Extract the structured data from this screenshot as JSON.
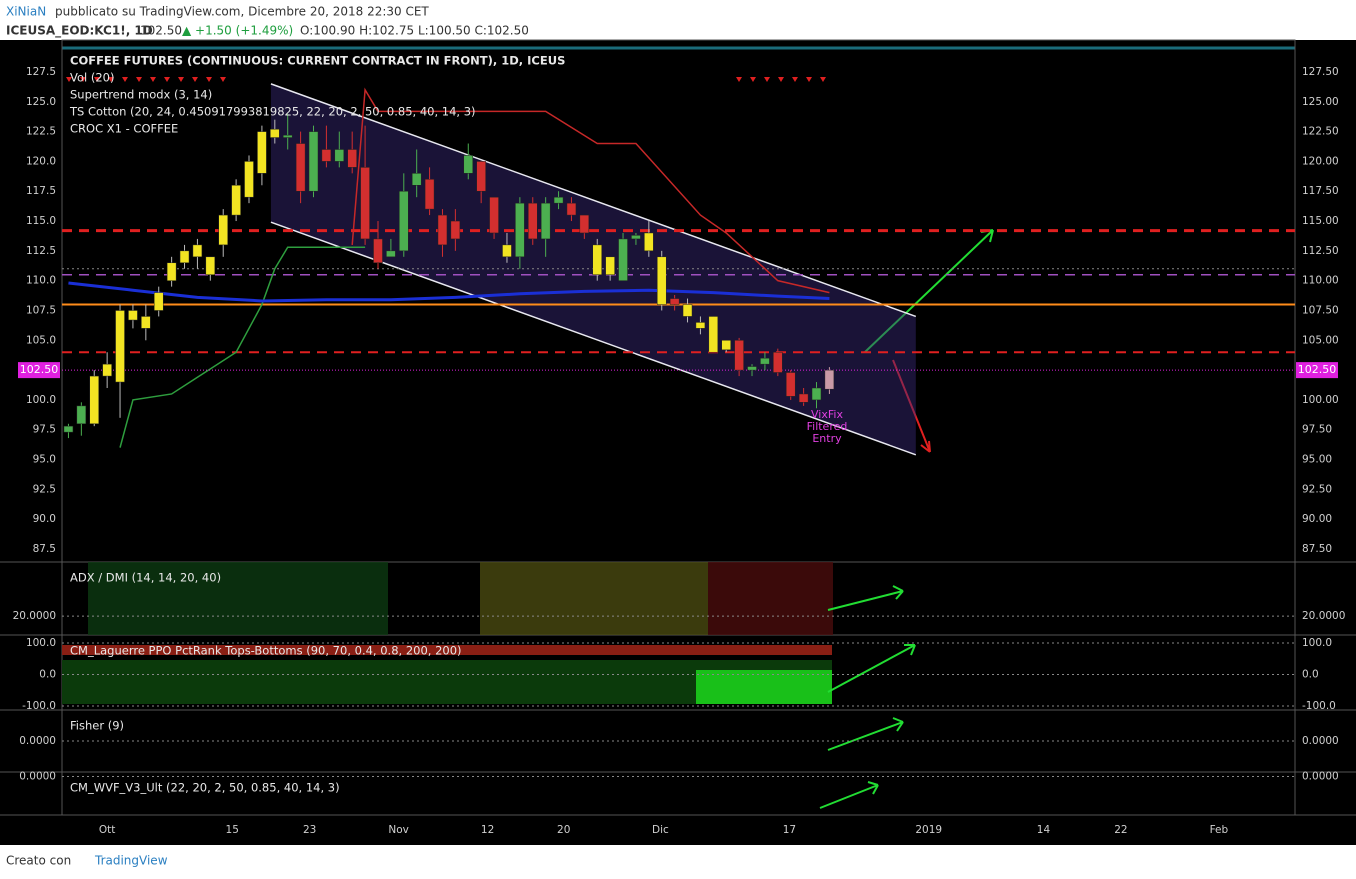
{
  "header": {
    "author": "XiNiaN",
    "published": "pubblicato su TradingView.com, Dicembre 20, 2018 22:30 CET",
    "symbol": "ICEUSA_EOD:KC1!, 1D",
    "price": "102.50",
    "change": "▲ +1.50 (+1.49%)",
    "ohlc": "O:100.90 H:102.75 L:100.50 C:102.50"
  },
  "footer": {
    "created": "Creato con",
    "brand": "TradingView"
  },
  "chart_data": {
    "type": "candlestick",
    "title": "COFFEE FUTURES (CONTINUOUS: CURRENT CONTRACT IN FRONT), 1D, ICEUS",
    "indicators": [
      "Vol (20)",
      "Supertrend modx (3, 14)",
      "TS Cotton (20, 24, 0.450917993819825, 22, 20, 2, 50, 0.85, 40, 14, 3)",
      "CROC X1 - COFFEE"
    ],
    "palette": {
      "Y": "#f2e422",
      "G": "#4caf50",
      "R": "#d32f2f",
      "P": "#c99aa6"
    },
    "candles": [
      [
        97.3,
        98,
        96.8,
        97.8,
        "G"
      ],
      [
        98,
        99.8,
        97,
        99.5,
        "G"
      ],
      [
        98,
        102.5,
        97.8,
        102,
        "Y"
      ],
      [
        102,
        104,
        101,
        103,
        "Y"
      ],
      [
        101.5,
        108,
        98.5,
        107.5,
        "Y"
      ],
      [
        106.7,
        108,
        106,
        107.5,
        "Y"
      ],
      [
        106,
        108,
        105,
        107,
        "Y"
      ],
      [
        107.5,
        109.5,
        107,
        109,
        "Y"
      ],
      [
        110,
        112,
        109.5,
        111.5,
        "Y"
      ],
      [
        111.5,
        113,
        111,
        112.5,
        "Y"
      ],
      [
        112,
        113.5,
        111,
        113,
        "Y"
      ],
      [
        110.5,
        112,
        110,
        112,
        "Y"
      ],
      [
        113,
        116,
        112,
        115.5,
        "Y"
      ],
      [
        115.5,
        118.5,
        115,
        118,
        "Y"
      ],
      [
        117,
        120.5,
        116.5,
        120,
        "Y"
      ],
      [
        119,
        123,
        118,
        122.5,
        "Y"
      ],
      [
        122,
        123.5,
        121.5,
        122.7,
        "Y"
      ],
      [
        122,
        124,
        121,
        122.2,
        "G"
      ],
      [
        121.5,
        122.5,
        116.5,
        117.5,
        "R"
      ],
      [
        117.5,
        123,
        117,
        122.5,
        "G"
      ],
      [
        121,
        123,
        119.5,
        120,
        "R"
      ],
      [
        120,
        122.5,
        119.5,
        121,
        "G"
      ],
      [
        121,
        122.5,
        119,
        119.5,
        "R"
      ],
      [
        119.5,
        123,
        113,
        113.5,
        "R"
      ],
      [
        113.5,
        115,
        111,
        111.5,
        "R"
      ],
      [
        112,
        113.5,
        112,
        112.5,
        "G"
      ],
      [
        112.5,
        119,
        112,
        117.5,
        "G"
      ],
      [
        118,
        121,
        117,
        119,
        "G"
      ],
      [
        118.5,
        119.5,
        115.5,
        116,
        "R"
      ],
      [
        115.5,
        116,
        112,
        113,
        "R"
      ],
      [
        115,
        116,
        112.5,
        113.5,
        "R"
      ],
      [
        119,
        121.5,
        118.5,
        120.5,
        "G"
      ],
      [
        120,
        120,
        116.5,
        117.5,
        "R"
      ],
      [
        117,
        117,
        113.5,
        114,
        "R"
      ],
      [
        113,
        114,
        111.5,
        112,
        "Y"
      ],
      [
        112,
        117,
        111,
        116.5,
        "G"
      ],
      [
        116.5,
        117,
        113,
        113.5,
        "R"
      ],
      [
        113.5,
        117,
        112,
        116.5,
        "G"
      ],
      [
        116.5,
        117.5,
        116,
        117,
        "G"
      ],
      [
        116.5,
        117,
        115,
        115.5,
        "R"
      ],
      [
        115.5,
        115.5,
        113.5,
        114,
        "R"
      ],
      [
        113,
        113.5,
        110,
        110.5,
        "Y"
      ],
      [
        110.5,
        112,
        110,
        112,
        "Y"
      ],
      [
        110,
        114,
        110,
        113.5,
        "G"
      ],
      [
        113.5,
        114,
        113,
        113.8,
        "G"
      ],
      [
        114,
        115,
        112,
        112.5,
        "Y"
      ],
      [
        112,
        112.5,
        107.5,
        108,
        "Y"
      ],
      [
        108.5,
        108.8,
        107.5,
        108,
        "R"
      ],
      [
        108,
        108.5,
        106.5,
        107,
        "Y"
      ],
      [
        106.5,
        107,
        105.5,
        106,
        "Y"
      ],
      [
        107,
        107,
        104,
        104,
        "Y"
      ],
      [
        105,
        105,
        104,
        104.2,
        "Y"
      ],
      [
        105,
        105.2,
        102,
        102.5,
        "R"
      ],
      [
        102.5,
        103,
        102,
        102.8,
        "G"
      ],
      [
        103,
        104,
        102.5,
        103.5,
        "G"
      ],
      [
        104,
        104.3,
        102,
        102.3,
        "R"
      ],
      [
        102.3,
        102.5,
        100,
        100.3,
        "R"
      ],
      [
        100.5,
        101,
        99.5,
        99.8,
        "R"
      ],
      [
        100,
        101.5,
        99.3,
        101,
        "G"
      ],
      [
        100.9,
        102.75,
        100.5,
        102.5,
        "P"
      ]
    ],
    "lines": [
      {
        "name": "Supertrend",
        "color": "#c62828",
        "x": [
          22,
          23,
          24,
          37,
          41,
          44,
          49,
          51,
          55,
          59
        ],
        "values": [
          113,
          126,
          124.2,
          124.2,
          121.5,
          121.5,
          115.5,
          114,
          110,
          109
        ]
      },
      {
        "name": "Supertrend",
        "color": "#2e9e3e",
        "x": [
          4,
          5,
          8,
          13,
          15,
          16,
          17,
          23
        ],
        "values": [
          96,
          100,
          100.5,
          104,
          108,
          111,
          112.8,
          112.8
        ]
      },
      {
        "name": "MA",
        "color": "#1a2fd6",
        "x": [
          0,
          5,
          10,
          15,
          20,
          25,
          30,
          35,
          40,
          45,
          50,
          55,
          59
        ],
        "values": [
          109.8,
          109.2,
          108.6,
          108.3,
          108.4,
          108.4,
          108.6,
          108.9,
          109.1,
          109.2,
          109,
          108.7,
          108.5
        ]
      }
    ],
    "levels": [
      {
        "value": 114.2,
        "color": "#e02020",
        "style": "dash",
        "width": 3
      },
      {
        "value": 104,
        "color": "#e02020",
        "style": "dash",
        "width": 2
      },
      {
        "value": 108,
        "color": "#ff8c1a",
        "style": "solid",
        "width": 2
      },
      {
        "value": 110.5,
        "color": "#a050c0",
        "style": "dash",
        "width": 1.5
      },
      {
        "value": 111,
        "color": "#888888",
        "style": "dot",
        "width": 1
      }
    ],
    "channel": {
      "x": [
        15.7,
        65.7
      ],
      "upper": [
        126.5,
        107
      ],
      "lower": [
        114.9,
        95.4
      ]
    },
    "last_price": {
      "value": 102.5,
      "label": "102.50"
    },
    "annotation": [
      "VixFix",
      "Filtered",
      "Entry"
    ],
    "xlim": [
      -0.5,
      95.1
    ],
    "xticks": [
      {
        "value": 3,
        "label": "Ott"
      },
      {
        "value": 12.7,
        "label": "15"
      },
      {
        "value": 18.7,
        "label": "23"
      },
      {
        "value": 25.6,
        "label": "Nov"
      },
      {
        "value": 32.5,
        "label": "12"
      },
      {
        "value": 38.4,
        "label": "20"
      },
      {
        "value": 45.9,
        "label": "Dic"
      },
      {
        "value": 55.9,
        "label": "17"
      },
      {
        "value": 66.7,
        "label": "2019"
      },
      {
        "value": 75.6,
        "label": "14"
      },
      {
        "value": 81.6,
        "label": "22"
      },
      {
        "value": 89.2,
        "label": "Feb"
      }
    ],
    "ylim": [
      86.41,
      130.18
    ],
    "yticks": [
      {
        "value": 87.5,
        "label": "87.5"
      },
      {
        "value": 90,
        "label": "90.0"
      },
      {
        "value": 92.5,
        "label": "92.5"
      },
      {
        "value": 95,
        "label": "95.0"
      },
      {
        "value": 97.5,
        "label": "97.5"
      },
      {
        "value": 100,
        "label": "100.0"
      },
      {
        "value": 102.5,
        "label": "102.5"
      },
      {
        "value": 105,
        "label": "105.0"
      },
      {
        "value": 107.5,
        "label": "107.5"
      },
      {
        "value": 110,
        "label": "110.0"
      },
      {
        "value": 112.5,
        "label": "112.5"
      },
      {
        "value": 115,
        "label": "115.0"
      },
      {
        "value": 117.5,
        "label": "117.5"
      },
      {
        "value": 120,
        "label": "120.0"
      },
      {
        "value": 122.5,
        "label": "122.5"
      },
      {
        "value": 125,
        "label": "125.0"
      },
      {
        "value": 127.5,
        "label": "127.5"
      }
    ],
    "y2lim": [
      86.41,
      130.18
    ],
    "y2ticks": [
      {
        "value": 87.5,
        "label": "87.50"
      },
      {
        "value": 90,
        "label": "90.00"
      },
      {
        "value": 92.5,
        "label": "92.50"
      },
      {
        "value": 95,
        "label": "95.00"
      },
      {
        "value": 97.5,
        "label": "97.50"
      },
      {
        "value": 100,
        "label": "100.00"
      },
      {
        "value": 102.5,
        "label": "102.50"
      },
      {
        "value": 105,
        "label": "105.00"
      },
      {
        "value": 107.5,
        "label": "107.50"
      },
      {
        "value": 110,
        "label": "110.00"
      },
      {
        "value": 112.5,
        "label": "112.50"
      },
      {
        "value": 115,
        "label": "115.00"
      },
      {
        "value": 117.5,
        "label": "117.50"
      },
      {
        "value": 120,
        "label": "120.00"
      },
      {
        "value": 122.5,
        "label": "122.50"
      },
      {
        "value": 125,
        "label": "125.00"
      },
      {
        "value": 127.5,
        "label": "127.50"
      }
    ],
    "panes": [
      {
        "title": "ADX / DMI (14, 14, 20, 40)",
        "ylim": [
          6,
          60
        ],
        "yticks": [
          {
            "value": 20,
            "label": "20.0000"
          }
        ]
      },
      {
        "title": "CM_Laguerre PPO PctRank Tops-Bottoms (90, 70, 0.4, 0.8, 200, 200)",
        "ylim": [
          -112.7,
          125.4
        ],
        "yticks": [
          {
            "value": 100,
            "label": "100.0"
          },
          {
            "value": 0,
            "label": "0.0"
          },
          {
            "value": -100,
            "label": "-100.0"
          }
        ]
      },
      {
        "title": "Fisher (9)",
        "ylim": [
          -1,
          1
        ],
        "yticks": [
          {
            "value": 0,
            "label": "0.0000"
          }
        ]
      },
      {
        "title": "CM_WVF_V3_Ult (22, 20, 2, 50, 0.85, 40, 14, 3)",
        "ylim": [
          -8.6,
          1
        ],
        "yticks": [
          {
            "value": 0,
            "label": "0.0000"
          }
        ]
      }
    ]
  }
}
